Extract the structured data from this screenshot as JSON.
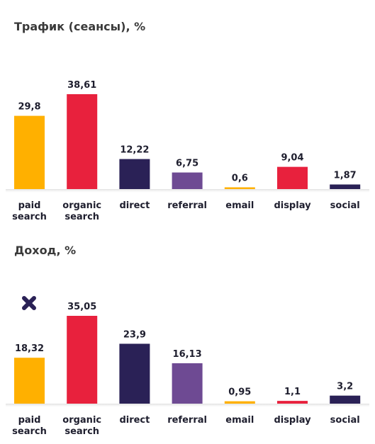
{
  "chart_data": [
    {
      "type": "bar",
      "title": "Трафик (сеансы), %",
      "categories": [
        [
          "paid",
          "search"
        ],
        [
          "organic",
          "search"
        ],
        [
          "direct"
        ],
        [
          "referral"
        ],
        [
          "email"
        ],
        [
          "display"
        ],
        [
          "social"
        ]
      ],
      "values": [
        29.8,
        38.61,
        12.22,
        6.75,
        0.6,
        9.04,
        1.87
      ],
      "value_labels": [
        "29,8",
        "38,61",
        "12,22",
        "6,75",
        "0,6",
        "9,04",
        "1,87"
      ],
      "colors": [
        "#FFB000",
        "#E8213D",
        "#2A2156",
        "#6E4A93",
        "#FFB000",
        "#E8213D",
        "#2A2156"
      ],
      "xlabel": "",
      "ylabel": "",
      "grid": false,
      "legend": "none"
    },
    {
      "type": "bar",
      "title": "Доход, %",
      "categories": [
        [
          "paid",
          "search"
        ],
        [
          "organic",
          "search"
        ],
        [
          "direct"
        ],
        [
          "referral"
        ],
        [
          "email"
        ],
        [
          "display"
        ],
        [
          "social"
        ]
      ],
      "values": [
        18.32,
        35.05,
        23.9,
        16.13,
        0.95,
        1.1,
        3.2
      ],
      "value_labels": [
        "18,32",
        "35,05",
        "23,9",
        "16,13",
        "0,95",
        "1,1",
        "3,2"
      ],
      "colors": [
        "#FFB000",
        "#E8213D",
        "#2A2156",
        "#6E4A93",
        "#FFB000",
        "#E8213D",
        "#2A2156"
      ],
      "xlabel": "",
      "ylabel": "",
      "grid": false,
      "legend": "none"
    }
  ],
  "marker": {
    "icon": "x-mark-icon",
    "color": "#2A2156"
  }
}
